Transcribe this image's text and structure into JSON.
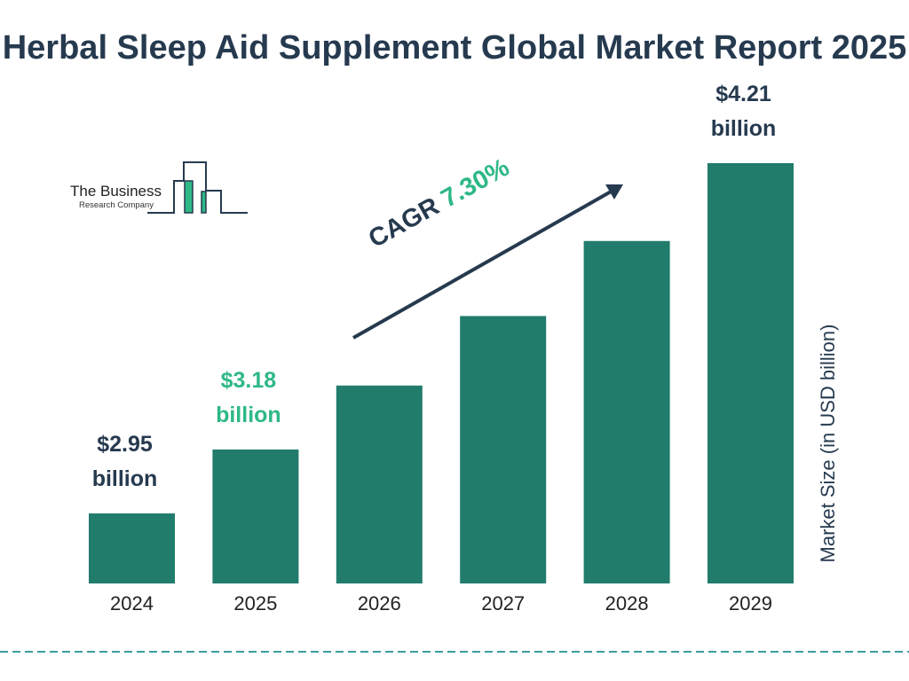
{
  "chart_data": {
    "type": "bar",
    "title": "Herbal Sleep Aid Supplement Global Market Report 2025",
    "ylabel": "Market Size (in USD billion)",
    "categories": [
      "2024",
      "2025",
      "2026",
      "2027",
      "2028",
      "2029"
    ],
    "values": [
      2.95,
      3.18,
      3.41,
      3.66,
      3.93,
      4.21
    ],
    "data_labels": [
      {
        "index": 0,
        "line1": "$2.95",
        "line2": "billion",
        "color": "#263a4f"
      },
      {
        "index": 1,
        "line1": "$3.18",
        "line2": "billion",
        "color": "#2eb886"
      },
      {
        "index": 5,
        "line1": "$4.21",
        "line2": "billion",
        "color": "#263a4f"
      }
    ],
    "annotation": {
      "label": "CAGR",
      "value": "7.30%"
    },
    "bar_color": "#217c6c",
    "grid": false,
    "legend": "none"
  },
  "logo": {
    "line1": "The Business",
    "line2": "Research Company"
  },
  "colors": {
    "title": "#263a4f",
    "accent": "#2eb886",
    "divider": "#3a9ea0"
  }
}
